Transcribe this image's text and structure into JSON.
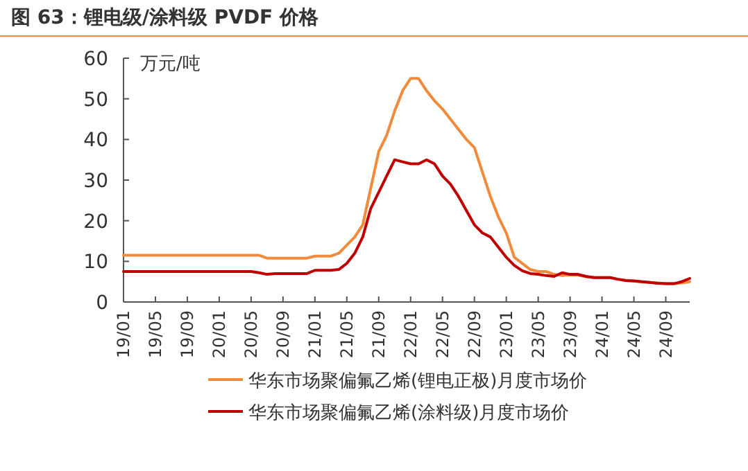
{
  "chart_data": {
    "type": "line",
    "title": "图 63：锂电级/涂料级 PVDF 价格",
    "ylabel": "万元/吨",
    "categories": [
      "19/01",
      null,
      null,
      null,
      "19/05",
      null,
      null,
      null,
      "19/09",
      null,
      null,
      null,
      "20/01",
      null,
      null,
      null,
      "20/05",
      null,
      null,
      null,
      "20/09",
      null,
      null,
      null,
      "21/01",
      null,
      null,
      null,
      "21/05",
      null,
      null,
      null,
      "21/09",
      null,
      null,
      null,
      "22/01",
      null,
      null,
      null,
      "22/05",
      null,
      null,
      null,
      "22/09",
      null,
      null,
      null,
      "23/01",
      null,
      null,
      null,
      "23/05",
      null,
      null,
      null,
      "23/09",
      null,
      null,
      null,
      "24/01",
      null,
      null,
      null,
      "24/05",
      null,
      null,
      null,
      "24/09",
      null,
      null,
      null
    ],
    "ylim": [
      0,
      60
    ],
    "yticks": [
      0,
      10,
      20,
      30,
      40,
      50,
      60
    ],
    "legend": "bottom",
    "series": [
      {
        "name": "华东市场聚偏氟乙烯(锂电正极)月度市场价",
        "color": "#f08a3c",
        "values": [
          11.5,
          11.5,
          11.5,
          11.5,
          11.5,
          11.5,
          11.5,
          11.5,
          11.5,
          11.5,
          11.5,
          11.5,
          11.5,
          11.5,
          11.5,
          11.5,
          11.5,
          11.5,
          10.8,
          10.8,
          10.8,
          10.8,
          10.8,
          10.8,
          11.3,
          11.3,
          11.3,
          12,
          14,
          16,
          19,
          28,
          37,
          41,
          47,
          52,
          55,
          55,
          52,
          49.5,
          47.5,
          45,
          42.5,
          40,
          38,
          32,
          26,
          21,
          17,
          11,
          9.5,
          8,
          7.5,
          7.5,
          6.8,
          6.5,
          6.7,
          6.6,
          6.2,
          6.0,
          6.0,
          6.0,
          5.6,
          5.3,
          5.1,
          5.0,
          4.8,
          4.7,
          4.5,
          4.5,
          4.7,
          5.0
        ]
      },
      {
        "name": "华东市场聚偏氟乙烯(涂料级)月度市场价",
        "color": "#c00000",
        "values": [
          7.5,
          7.5,
          7.5,
          7.5,
          7.5,
          7.5,
          7.5,
          7.5,
          7.5,
          7.5,
          7.5,
          7.5,
          7.5,
          7.5,
          7.5,
          7.5,
          7.5,
          7.2,
          6.8,
          7.0,
          7.0,
          7.0,
          7.0,
          7.0,
          7.8,
          7.8,
          7.8,
          8,
          9.5,
          12,
          16,
          23,
          27,
          31,
          35,
          34.5,
          34,
          34,
          35,
          34,
          31,
          29,
          26,
          22.5,
          19,
          17,
          16,
          13.5,
          11,
          9,
          7.7,
          7,
          6.8,
          6.5,
          6.3,
          7.2,
          6.8,
          6.8,
          6.3,
          6.0,
          6.0,
          6.0,
          5.6,
          5.3,
          5.2,
          5.0,
          4.8,
          4.6,
          4.5,
          4.5,
          5.0,
          5.8
        ]
      }
    ]
  }
}
